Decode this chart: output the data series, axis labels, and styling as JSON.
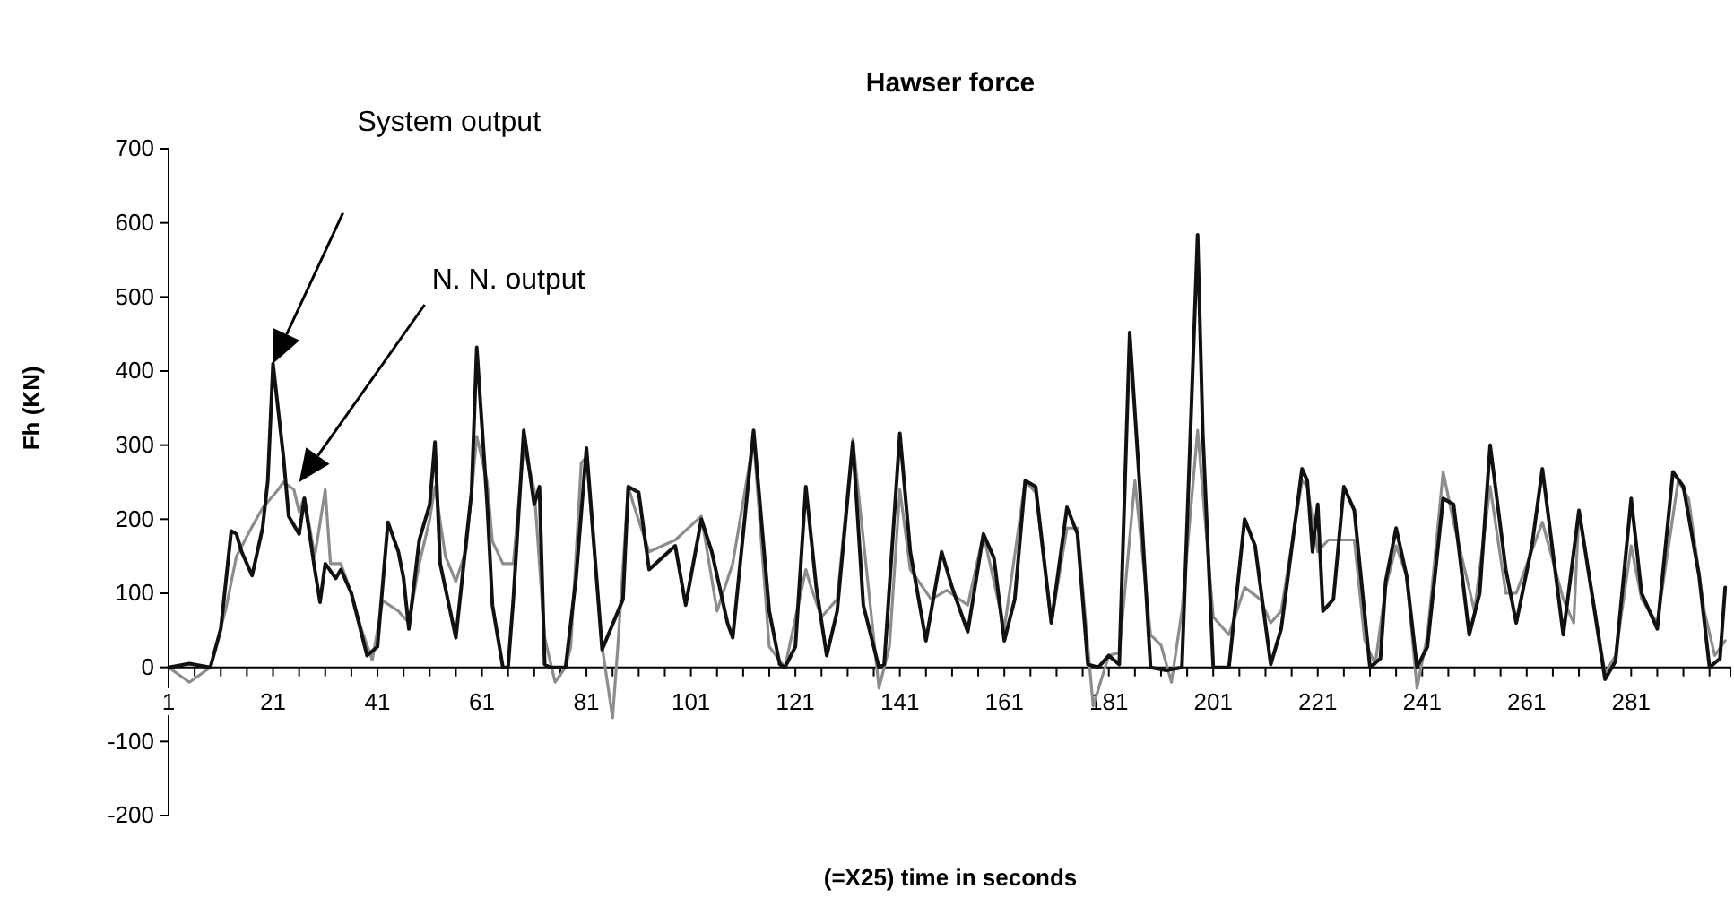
{
  "chart_data": {
    "type": "line",
    "title": "Hawser force",
    "xlabel": "(=X25) time in seconds",
    "ylabel": "Fh (KN)",
    "xlim": [
      1,
      300
    ],
    "ylim": [
      -200,
      700
    ],
    "xticks": [
      1,
      {
        "value": 6,
        "label": null
      },
      {
        "value": 11,
        "label": null
      },
      {
        "value": 16,
        "label": null
      },
      21,
      {
        "value": 26,
        "label": null
      },
      {
        "value": 31,
        "label": null
      },
      {
        "value": 36,
        "label": null
      },
      41,
      {
        "value": 46,
        "label": null
      },
      {
        "value": 51,
        "label": null
      },
      {
        "value": 56,
        "label": null
      },
      61,
      {
        "value": 66,
        "label": null
      },
      {
        "value": 71,
        "label": null
      },
      {
        "value": 76,
        "label": null
      },
      81,
      {
        "value": 86,
        "label": null
      },
      {
        "value": 91,
        "label": null
      },
      {
        "value": 96,
        "label": null
      },
      101,
      {
        "value": 106,
        "label": null
      },
      {
        "value": 111,
        "label": null
      },
      {
        "value": 116,
        "label": null
      },
      121,
      {
        "value": 126,
        "label": null
      },
      {
        "value": 131,
        "label": null
      },
      {
        "value": 136,
        "label": null
      },
      141,
      {
        "value": 146,
        "label": null
      },
      {
        "value": 151,
        "label": null
      },
      {
        "value": 156,
        "label": null
      },
      161,
      {
        "value": 166,
        "label": null
      },
      {
        "value": 171,
        "label": null
      },
      {
        "value": 176,
        "label": null
      },
      181,
      {
        "value": 186,
        "label": null
      },
      {
        "value": 191,
        "label": null
      },
      {
        "value": 196,
        "label": null
      },
      201,
      {
        "value": 206,
        "label": null
      },
      {
        "value": 211,
        "label": null
      },
      {
        "value": 216,
        "label": null
      },
      221,
      {
        "value": 226,
        "label": null
      },
      {
        "value": 231,
        "label": null
      },
      {
        "value": 236,
        "label": null
      },
      241,
      {
        "value": 246,
        "label": null
      },
      {
        "value": 251,
        "label": null
      },
      {
        "value": 256,
        "label": null
      },
      261,
      {
        "value": 266,
        "label": null
      },
      {
        "value": 271,
        "label": null
      },
      {
        "value": 276,
        "label": null
      },
      281,
      {
        "value": 286,
        "label": null
      },
      {
        "value": 291,
        "label": null
      },
      {
        "value": 296,
        "label": null
      }
    ],
    "yticks": [
      -200,
      -100,
      0,
      100,
      200,
      300,
      400,
      500,
      600,
      700
    ],
    "grid": false,
    "marker": "none",
    "line_style": "solid",
    "annotations": [
      "System output",
      "N. N. output"
    ],
    "series": [
      {
        "color": "#8c8c8c",
        "x": [
          1,
          3,
          5,
          7,
          9,
          12,
          14,
          17,
          19,
          22,
          23,
          25,
          26,
          27,
          29,
          31,
          32,
          34,
          36,
          38,
          40,
          42,
          45,
          47,
          49,
          51,
          52,
          54,
          56,
          58,
          60,
          62,
          63,
          65,
          67,
          69,
          71,
          73,
          75,
          77,
          78,
          80,
          81,
          84,
          86,
          87,
          89,
          90,
          93,
          98,
          103,
          106,
          109,
          113,
          116,
          119,
          123,
          124,
          126,
          129,
          132,
          137,
          139,
          141,
          143,
          147,
          150,
          154,
          157,
          161,
          165,
          167,
          170,
          173,
          175,
          178,
          181,
          183,
          186,
          189,
          191,
          193,
          195,
          198,
          201,
          204,
          207,
          210,
          212,
          214,
          218,
          219,
          221,
          223,
          226,
          228,
          230,
          232,
          234,
          236,
          238,
          240,
          242,
          245,
          247,
          251,
          254,
          257,
          259,
          264,
          268,
          270,
          271,
          276,
          278,
          281,
          283,
          286,
          290,
          292,
          295,
          297,
          299
        ],
        "values": [
          0,
          -10,
          -20,
          -10,
          0,
          80,
          150,
          190,
          215,
          240,
          250,
          240,
          210,
          230,
          150,
          240,
          140,
          140,
          100,
          50,
          10,
          90,
          76,
          60,
          140,
          200,
          244,
          150,
          116,
          160,
          312,
          250,
          170,
          140,
          140,
          300,
          240,
          40,
          -20,
          0,
          28,
          276,
          284,
          28,
          -68,
          28,
          244,
          220,
          156,
          172,
          204,
          76,
          140,
          308,
          28,
          0,
          132,
          108,
          68,
          92,
          308,
          -28,
          28,
          240,
          132,
          92,
          104,
          84,
          180,
          52,
          252,
          236,
          60,
          188,
          188,
          -52,
          16,
          20,
          252,
          44,
          30,
          -20,
          76,
          320,
          68,
          44,
          108,
          92,
          60,
          76,
          252,
          244,
          156,
          172,
          172,
          172,
          36,
          4,
          108,
          164,
          124,
          -28,
          44,
          264,
          196,
          76,
          244,
          100,
          100,
          196,
          92,
          60,
          212,
          -8,
          16,
          164,
          92,
          60,
          252,
          228,
          76,
          16,
          36
        ]
      },
      {
        "color": "#111111",
        "x": [
          1,
          5,
          9,
          11,
          13,
          14,
          15,
          17,
          19,
          20,
          21,
          23,
          24,
          26,
          27,
          29,
          30,
          31,
          33,
          34,
          36,
          39,
          41,
          43,
          45,
          46,
          47,
          49,
          51,
          52,
          53,
          56,
          58,
          59,
          60,
          62,
          63,
          65,
          66,
          67,
          69,
          71,
          72,
          73,
          74,
          77,
          79,
          81,
          84,
          88,
          89,
          91,
          93,
          98,
          100,
          103,
          105,
          108,
          109,
          113,
          116,
          118,
          119,
          121,
          123,
          125,
          127,
          129,
          132,
          134,
          137,
          138,
          141,
          143,
          146,
          149,
          151,
          154,
          157,
          159,
          161,
          163,
          165,
          167,
          170,
          173,
          175,
          177,
          179,
          181,
          183,
          185,
          187,
          189,
          192,
          195,
          198,
          199,
          201,
          204,
          207,
          209,
          212,
          214,
          218,
          219,
          220,
          221,
          222,
          224,
          226,
          228,
          231,
          233,
          234,
          236,
          238,
          240,
          242,
          245,
          247,
          250,
          252,
          254,
          257,
          259,
          262,
          264,
          268,
          271,
          274,
          276,
          278,
          281,
          283,
          286,
          289,
          291,
          294,
          296,
          298,
          299
        ],
        "values": [
          0,
          5,
          0,
          52,
          184,
          180,
          156,
          124,
          188,
          252,
          410,
          284,
          204,
          180,
          228,
          132,
          88,
          140,
          120,
          132,
          100,
          16,
          28,
          196,
          156,
          120,
          52,
          172,
          220,
          304,
          140,
          40,
          172,
          236,
          432,
          220,
          84,
          0,
          0,
          92,
          320,
          220,
          244,
          4,
          0,
          0,
          120,
          296,
          24,
          92,
          244,
          236,
          132,
          164,
          84,
          200,
          156,
          60,
          40,
          320,
          76,
          4,
          0,
          28,
          244,
          108,
          16,
          76,
          304,
          84,
          0,
          4,
          316,
          156,
          36,
          156,
          108,
          48,
          180,
          148,
          36,
          92,
          252,
          244,
          60,
          216,
          180,
          4,
          0,
          16,
          4,
          452,
          236,
          0,
          -4,
          0,
          584,
          316,
          0,
          0,
          200,
          164,
          4,
          52,
          268,
          252,
          156,
          220,
          76,
          92,
          244,
          212,
          0,
          12,
          116,
          188,
          124,
          0,
          28,
          228,
          220,
          44,
          100,
          300,
          132,
          60,
          164,
          268,
          44,
          212,
          76,
          -16,
          8,
          228,
          100,
          52,
          264,
          244,
          124,
          0,
          12,
          108
        ]
      }
    ]
  }
}
